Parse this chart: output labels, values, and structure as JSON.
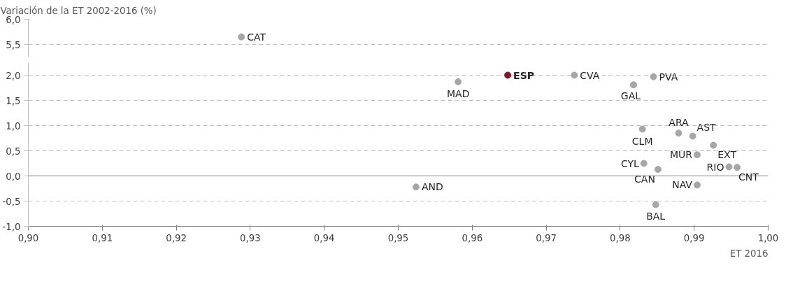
{
  "chart_data": [
    {
      "type": "scatter",
      "title": "Variación de la ET 2002-2016 (%)",
      "xlim": [
        0.9,
        1.0
      ],
      "ylim": [
        5.25,
        6.0
      ],
      "yticks": [
        {
          "value": 5.5,
          "label": "5,5"
        },
        {
          "value": 6.0,
          "label": "6,0"
        }
      ],
      "grid": "y",
      "tick_labels": "y",
      "marker": "circle",
      "series": [
        {
          "name": "CAT",
          "color": "#a6a6a6",
          "x": [
            0.9288
          ],
          "values": [
            5.65
          ]
        }
      ]
    },
    {
      "type": "scatter",
      "xlabel": "ET 2016",
      "xlim": [
        0.9,
        1.0
      ],
      "xticks": [
        {
          "value": 0.9,
          "label": "0,90"
        },
        {
          "value": 0.91,
          "label": "0,91"
        },
        {
          "value": 0.92,
          "label": "0,92"
        },
        {
          "value": 0.93,
          "label": "0,93"
        },
        {
          "value": 0.94,
          "label": "0,94"
        },
        {
          "value": 0.95,
          "label": "0,95"
        },
        {
          "value": 0.96,
          "label": "0,96"
        },
        {
          "value": 0.97,
          "label": "0,97"
        },
        {
          "value": 0.98,
          "label": "0,98"
        },
        {
          "value": 0.99,
          "label": "0,99"
        },
        {
          "value": 1.0,
          "label": "1,00"
        }
      ],
      "ylim": [
        -1.0,
        2.25
      ],
      "yticks": [
        {
          "value": -1.0,
          "label": "-1,0"
        },
        {
          "value": -0.5,
          "label": "-0,5"
        },
        {
          "value": 0.0,
          "label": "0,0"
        },
        {
          "value": 0.5,
          "label": "0,5"
        },
        {
          "value": 1.0,
          "label": "1,0"
        },
        {
          "value": 1.5,
          "label": "1,5"
        },
        {
          "value": 2.0,
          "label": "2,0"
        }
      ],
      "grid": "y",
      "marker": "circle",
      "ref_lines": [
        {
          "axis": "y",
          "value": 0.0,
          "color": "#7f7f7f"
        }
      ],
      "series": [
        {
          "name": "MAD",
          "color": "#a6a6a6",
          "x": [
            0.9581
          ],
          "values": [
            1.87
          ]
        },
        {
          "name": "ESP",
          "color": "#7b1c2e",
          "x": [
            0.9648
          ],
          "values": [
            2.0
          ]
        },
        {
          "name": "CVA",
          "color": "#a6a6a6",
          "x": [
            0.9738
          ],
          "values": [
            2.0
          ]
        },
        {
          "name": "PVA",
          "color": "#a6a6a6",
          "x": [
            0.9845
          ],
          "values": [
            1.97
          ]
        },
        {
          "name": "GAL",
          "color": "#a6a6a6",
          "x": [
            0.9818
          ],
          "values": [
            1.81
          ]
        },
        {
          "name": "ARA",
          "color": "#a6a6a6",
          "x": [
            0.9879
          ],
          "values": [
            0.85
          ]
        },
        {
          "name": "AST",
          "color": "#a6a6a6",
          "x": [
            0.9898
          ],
          "values": [
            0.79
          ]
        },
        {
          "name": "CLM",
          "color": "#a6a6a6",
          "x": [
            0.983
          ],
          "values": [
            0.93
          ]
        },
        {
          "name": "EXT",
          "color": "#a6a6a6",
          "x": [
            0.9926
          ],
          "values": [
            0.61
          ]
        },
        {
          "name": "MUR",
          "color": "#a6a6a6",
          "x": [
            0.9904
          ],
          "values": [
            0.42
          ]
        },
        {
          "name": "CYL",
          "color": "#a6a6a6",
          "x": [
            0.9832
          ],
          "values": [
            0.25
          ]
        },
        {
          "name": "CAN",
          "color": "#a6a6a6",
          "x": [
            0.9851
          ],
          "values": [
            0.13
          ]
        },
        {
          "name": "RIO",
          "color": "#a6a6a6",
          "x": [
            0.9947
          ],
          "values": [
            0.18
          ]
        },
        {
          "name": "CNT",
          "color": "#a6a6a6",
          "x": [
            0.9958
          ],
          "values": [
            0.17
          ]
        },
        {
          "name": "NAV",
          "color": "#a6a6a6",
          "x": [
            0.9904
          ],
          "values": [
            -0.18
          ]
        },
        {
          "name": "BAL",
          "color": "#a6a6a6",
          "x": [
            0.9848
          ],
          "values": [
            -0.57
          ]
        },
        {
          "name": "AND",
          "color": "#a6a6a6",
          "x": [
            0.9524
          ],
          "values": [
            -0.22
          ]
        }
      ]
    }
  ]
}
